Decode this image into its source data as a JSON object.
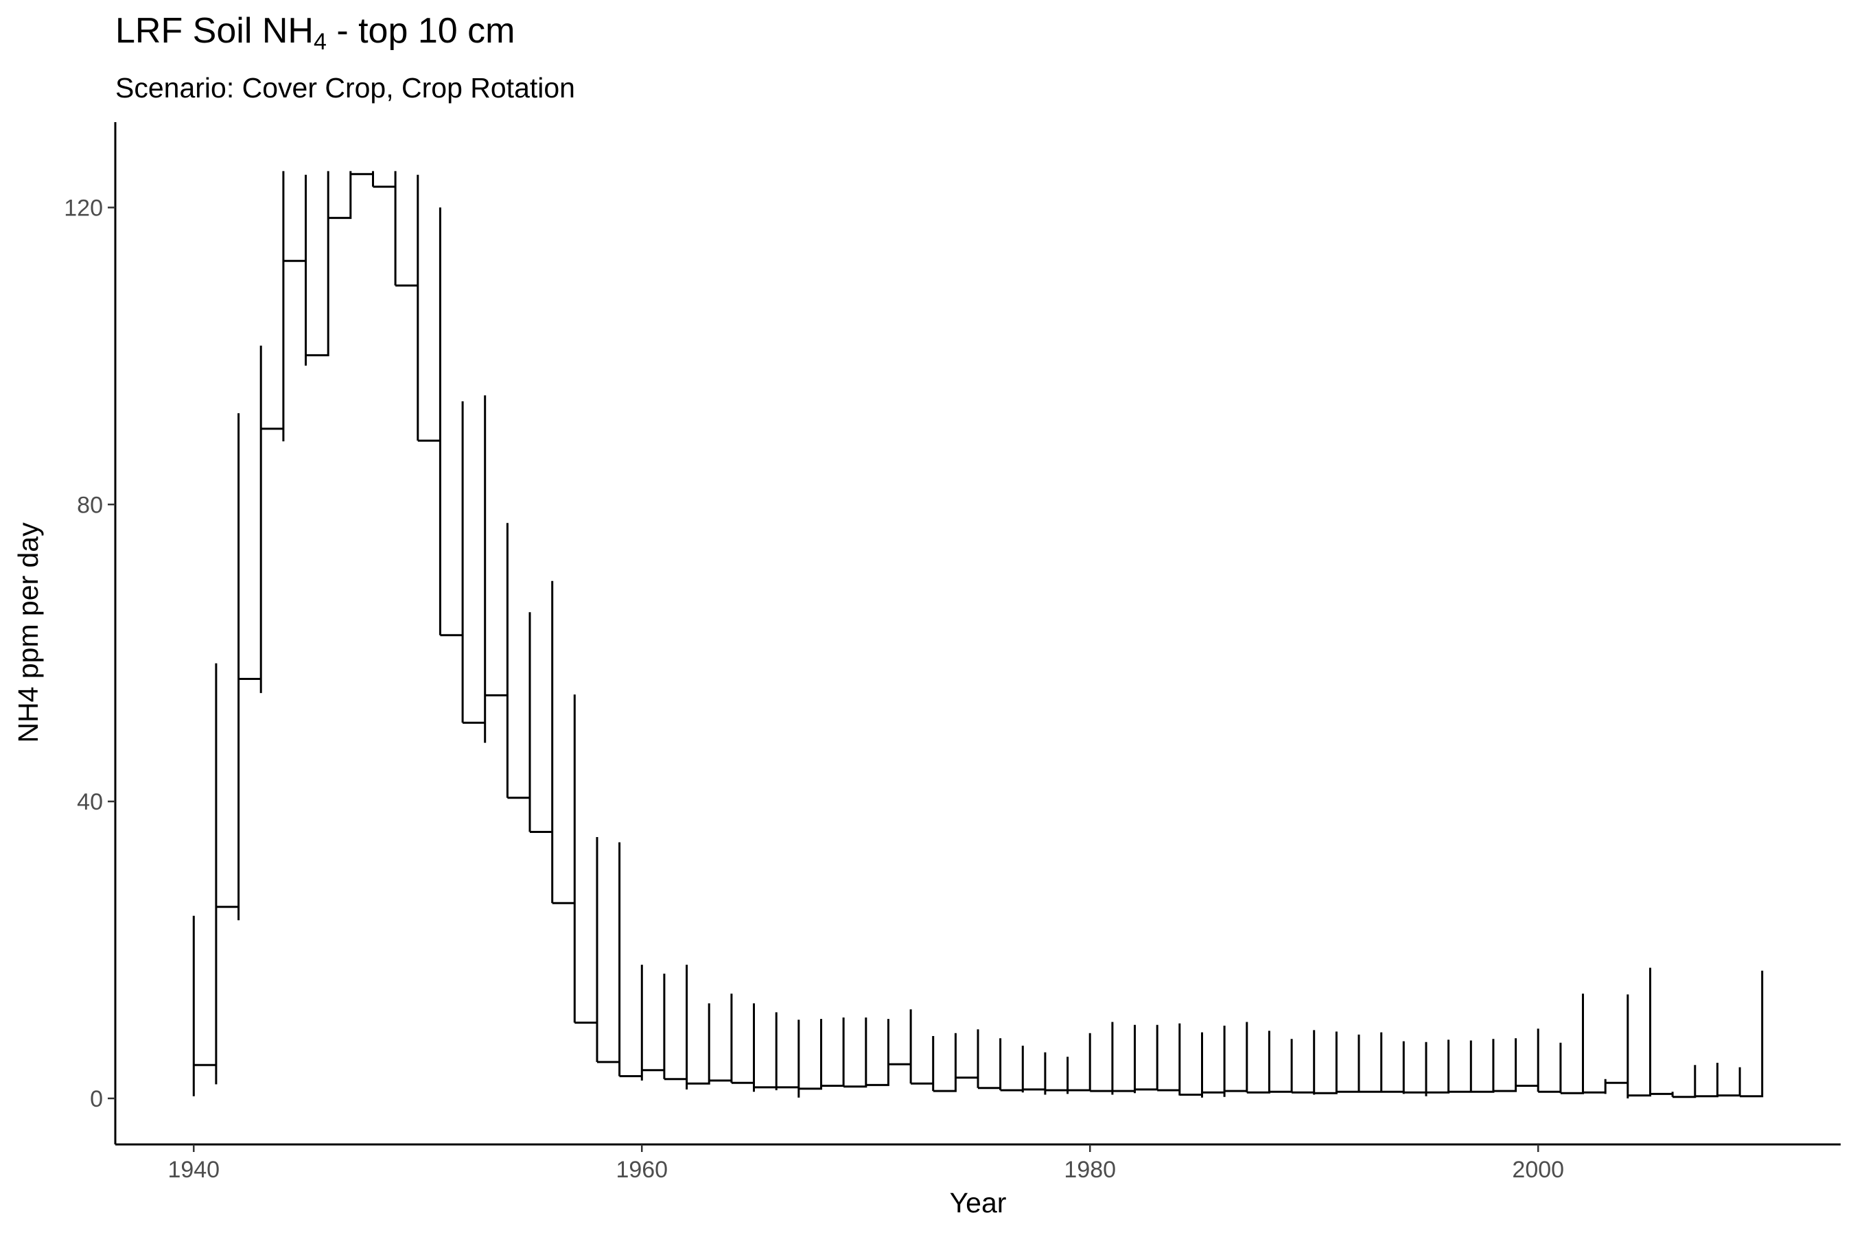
{
  "title": {
    "main": "LRF Soil NH",
    "subscript": "4",
    "suffix": " - top 10 cm"
  },
  "subtitle": "Scenario: Cover Crop, Crop Rotation",
  "chart_data": {
    "type": "line",
    "title": "LRF Soil NH4 - top 10 cm",
    "subtitle": "Scenario: Cover Crop, Crop Rotation",
    "xlabel": "Year",
    "ylabel": "NH4 ppm per day",
    "xlim": [
      1936.5,
      2013.5
    ],
    "ylim": [
      -6.2,
      131.5
    ],
    "x_ticks": [
      1940,
      1960,
      1980,
      2000
    ],
    "y_ticks": [
      0,
      40,
      80,
      120
    ],
    "grid": false,
    "line_color": "#000000",
    "description_of_series": "Yearly step series: each year has a peak value at its start, then an annual baseline level plotted as a step.",
    "series": [
      {
        "name": "NH4",
        "years": [
          1940,
          1941,
          1942,
          1943,
          1944,
          1945,
          1946,
          1947,
          1948,
          1949,
          1950,
          1951,
          1952,
          1953,
          1954,
          1955,
          1956,
          1957,
          1958,
          1959,
          1960,
          1961,
          1962,
          1963,
          1964,
          1965,
          1966,
          1967,
          1968,
          1969,
          1970,
          1971,
          1972,
          1973,
          1974,
          1975,
          1976,
          1977,
          1978,
          1979,
          1980,
          1981,
          1982,
          1983,
          1984,
          1985,
          1986,
          1987,
          1988,
          1989,
          1990,
          1991,
          1992,
          1993,
          1994,
          1995,
          1996,
          1997,
          1998,
          1999,
          2000,
          2001,
          2002,
          2003,
          2004,
          2005,
          2006,
          2007,
          2008,
          2009,
          2010
        ],
        "level": [
          4.5,
          25.8,
          56.5,
          90.2,
          112.8,
          100.1,
          118.6,
          124.5,
          122.8,
          109.5,
          88.6,
          62.4,
          50.6,
          54.3,
          40.5,
          35.9,
          26.3,
          10.2,
          4.9,
          3.0,
          3.8,
          2.6,
          2.0,
          2.4,
          2.1,
          1.5,
          1.5,
          1.3,
          1.7,
          1.6,
          1.8,
          4.6,
          2.0,
          1.0,
          2.8,
          1.4,
          1.1,
          1.2,
          1.1,
          1.1,
          1.0,
          1.0,
          1.2,
          1.1,
          0.5,
          0.8,
          1.0,
          0.8,
          0.9,
          0.8,
          0.7,
          0.9,
          0.9,
          0.9,
          0.8,
          0.8,
          0.9,
          0.9,
          1.0,
          1.7,
          0.9,
          0.7,
          0.8,
          2.1,
          0.4,
          0.6,
          0.2,
          0.3,
          0.4,
          0.3,
          0.5
        ],
        "peak": [
          24.6,
          58.6,
          92.3,
          101.4,
          124.9,
          124.4,
          124.9,
          124.9,
          124.9,
          124.9,
          124.4,
          120.0,
          93.9,
          94.7,
          77.5,
          65.5,
          69.7,
          54.4,
          35.2,
          34.5,
          18.0,
          16.8,
          18.0,
          12.8,
          14.1,
          12.8,
          11.6,
          10.6,
          10.7,
          10.9,
          10.9,
          10.7,
          12.0,
          8.4,
          8.8,
          9.3,
          8.1,
          7.1,
          6.2,
          5.6,
          8.8,
          10.3,
          9.9,
          9.9,
          10.1,
          8.9,
          9.8,
          10.3,
          9.1,
          8.0,
          9.2,
          9.0,
          8.6,
          8.9,
          7.7,
          7.6,
          7.9,
          7.8,
          8.0,
          8.1,
          9.4,
          7.5,
          14.1,
          2.6,
          14.0,
          17.6,
          0.9,
          4.5,
          4.8,
          4.2,
          17.2
        ],
        "trough": [
          0.3,
          1.9,
          24.0,
          54.6,
          88.5,
          98.7,
          116.9,
          null,
          null,
          null,
          null,
          null,
          null,
          47.9,
          null,
          null,
          null,
          null,
          null,
          null,
          2.4,
          null,
          1.2,
          null,
          null,
          0.9,
          1.1,
          0.1,
          null,
          null,
          null,
          null,
          null,
          null,
          null,
          null,
          null,
          0.8,
          0.5,
          0.6,
          null,
          0.5,
          0.7,
          null,
          0.4,
          0.1,
          0.2,
          null,
          null,
          null,
          0.5,
          null,
          null,
          null,
          0.6,
          0.3,
          null,
          null,
          null,
          null,
          null,
          null,
          null,
          0.6,
          0.0,
          null,
          null,
          null,
          null,
          null,
          null
        ]
      }
    ]
  }
}
